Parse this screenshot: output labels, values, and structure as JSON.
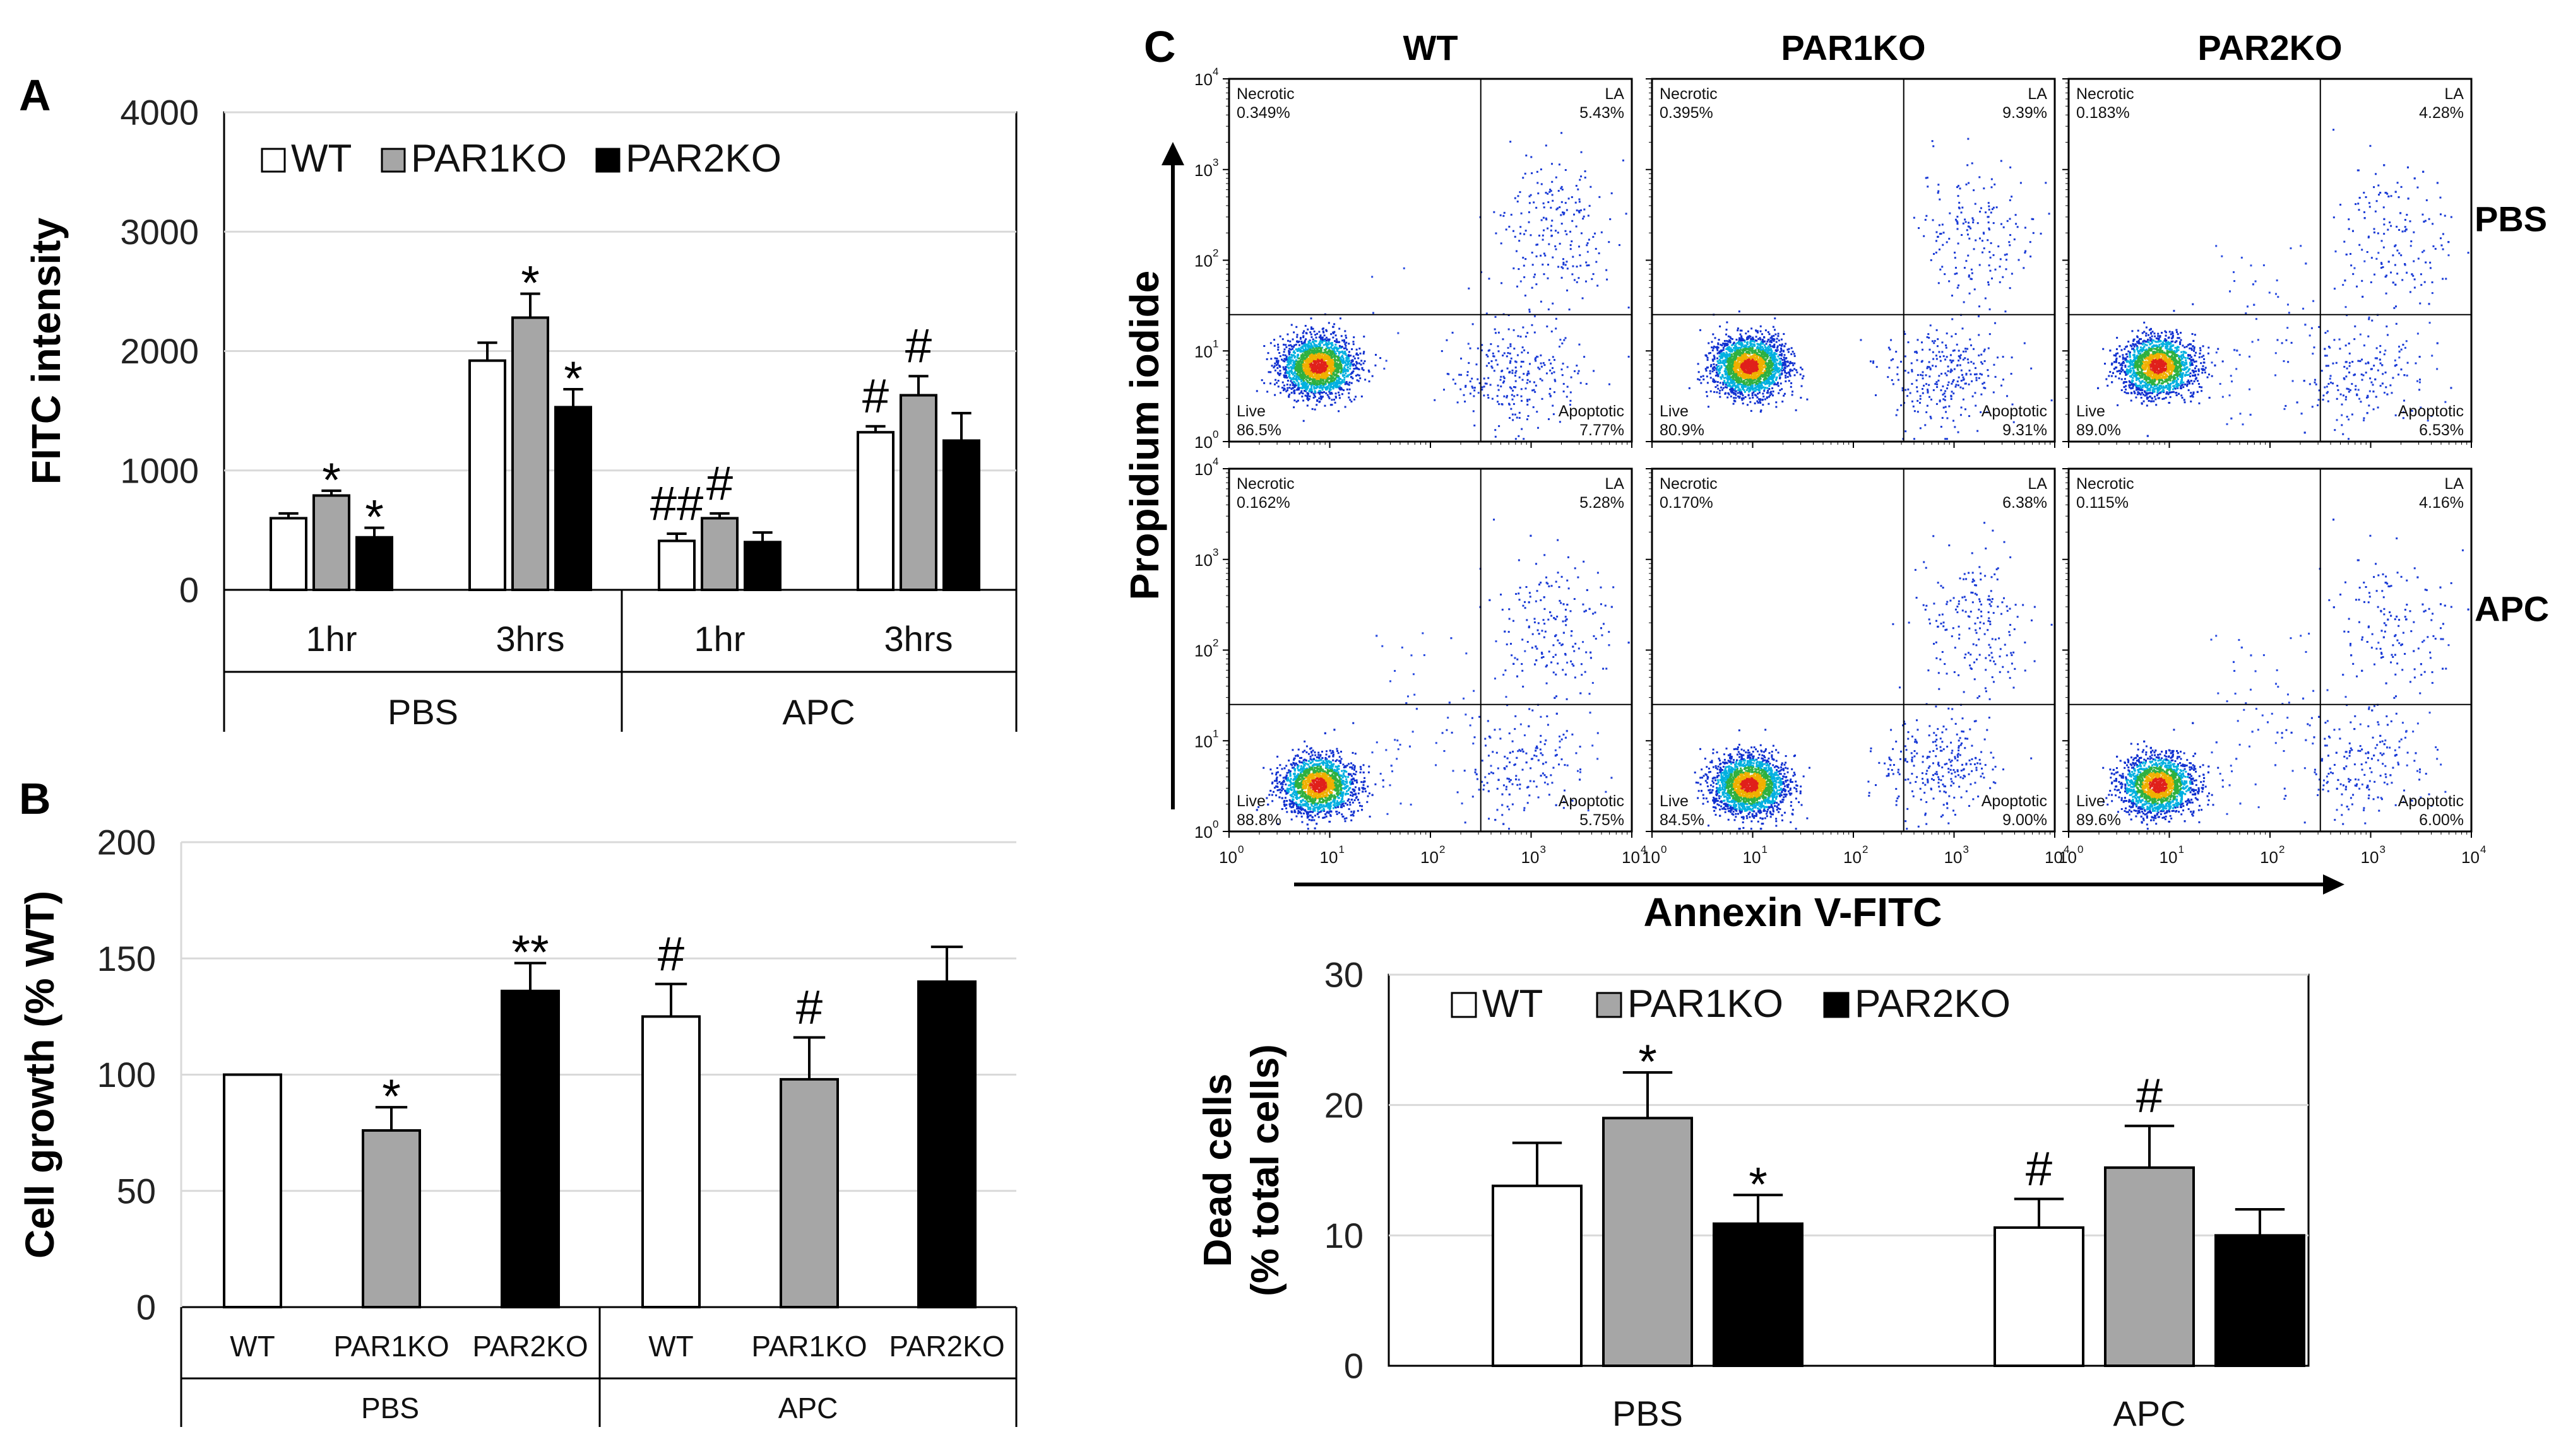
{
  "panels": {
    "a": "A",
    "b": "B",
    "c": "C"
  },
  "chart_data": [
    {
      "id": "A",
      "type": "bar",
      "ylabel": "FITC intensity",
      "ylim": [
        0,
        4000
      ],
      "yticks": [
        0,
        1000,
        2000,
        3000,
        4000
      ],
      "grid": true,
      "legend": {
        "placement": "top-left",
        "entries": [
          "WT",
          "PAR1KO",
          "PAR2KO"
        ]
      },
      "categories": [
        "1hr",
        "3hrs",
        "1hr",
        "3hrs"
      ],
      "groups": [
        "PBS",
        "APC"
      ],
      "series": [
        {
          "name": "WT",
          "color": "#ffffff",
          "values": [
            600,
            1920,
            410,
            1320
          ],
          "errors": [
            40,
            150,
            60,
            50
          ],
          "annotations": [
            "",
            "",
            "##",
            "#"
          ]
        },
        {
          "name": "PAR1KO",
          "color": "#a6a6a6",
          "values": [
            790,
            2280,
            600,
            1630
          ],
          "errors": [
            40,
            200,
            40,
            160
          ],
          "annotations": [
            "*",
            "*",
            "#",
            "#"
          ]
        },
        {
          "name": "PAR2KO",
          "color": "#000000",
          "values": [
            440,
            1530,
            400,
            1250
          ],
          "errors": [
            80,
            150,
            80,
            230
          ],
          "annotations": [
            "*",
            "*",
            "",
            ""
          ]
        }
      ]
    },
    {
      "id": "B",
      "type": "bar",
      "ylabel": "Cell growth (% WT)",
      "ylim": [
        0,
        200
      ],
      "yticks": [
        0,
        50,
        100,
        150,
        200
      ],
      "grid": true,
      "categories": [
        "WT",
        "PAR1KO",
        "PAR2KO",
        "WT",
        "PAR1KO",
        "PAR2KO"
      ],
      "groups": [
        "PBS",
        "APC"
      ],
      "colors": [
        "#ffffff",
        "#a6a6a6",
        "#000000",
        "#ffffff",
        "#a6a6a6",
        "#000000"
      ],
      "values": [
        100,
        76,
        136,
        125,
        98,
        140
      ],
      "errors": [
        0,
        10,
        12,
        14,
        18,
        15
      ],
      "annotations": [
        "",
        "*",
        "**",
        "#",
        "#",
        ""
      ]
    },
    {
      "id": "C-flow",
      "type": "scatter",
      "xlabel": "Annexin V-FITC",
      "ylabel": "Propidium iodide",
      "columns": [
        "WT",
        "PAR1KO",
        "PAR2KO"
      ],
      "rows": [
        "PBS",
        "APC"
      ],
      "axis_ticks": [
        "10",
        "10",
        "10",
        "10",
        "10"
      ],
      "axis_exponents": [
        "0",
        "1",
        "2",
        "3",
        "4"
      ],
      "quadrant_labels": {
        "necrotic": "Necrotic",
        "la": "LA",
        "live": "Live",
        "apoptotic": "Apoptotic"
      },
      "plots": [
        {
          "row": "PBS",
          "col": "WT",
          "necrotic": "0.349%",
          "la": "5.43%",
          "live": "86.5%",
          "apoptotic": "7.77%"
        },
        {
          "row": "PBS",
          "col": "PAR1KO",
          "necrotic": "0.395%",
          "la": "9.39%",
          "live": "80.9%",
          "apoptotic": "9.31%"
        },
        {
          "row": "PBS",
          "col": "PAR2KO",
          "necrotic": "0.183%",
          "la": "4.28%",
          "live": "89.0%",
          "apoptotic": "6.53%"
        },
        {
          "row": "APC",
          "col": "WT",
          "necrotic": "0.162%",
          "la": "5.28%",
          "live": "88.8%",
          "apoptotic": "5.75%"
        },
        {
          "row": "APC",
          "col": "PAR1KO",
          "necrotic": "0.170%",
          "la": "6.38%",
          "live": "84.5%",
          "apoptotic": "9.00%"
        },
        {
          "row": "APC",
          "col": "PAR2KO",
          "necrotic": "0.115%",
          "la": "4.16%",
          "live": "89.6%",
          "apoptotic": "6.00%"
        }
      ]
    },
    {
      "id": "C-bar",
      "type": "bar",
      "ylabel_line1": "Dead cells",
      "ylabel_line2": "(% total cells)",
      "ylim": [
        0,
        30
      ],
      "yticks": [
        0,
        10,
        20,
        30
      ],
      "grid": true,
      "legend": {
        "placement": "top",
        "entries": [
          "WT",
          "PAR1KO",
          "PAR2KO"
        ]
      },
      "categories": [
        "PBS",
        "APC"
      ],
      "series": [
        {
          "name": "WT",
          "color": "#ffffff",
          "values": [
            13.8,
            10.6
          ],
          "errors": [
            3.3,
            2.2
          ],
          "annotations": [
            "",
            "#"
          ]
        },
        {
          "name": "PAR1KO",
          "color": "#a6a6a6",
          "values": [
            19.0,
            15.2
          ],
          "errors": [
            3.5,
            3.2
          ],
          "annotations": [
            "*",
            "#"
          ]
        },
        {
          "name": "PAR2KO",
          "color": "#000000",
          "values": [
            10.9,
            10.0
          ],
          "errors": [
            2.2,
            2.0
          ],
          "annotations": [
            "*",
            ""
          ]
        }
      ]
    }
  ]
}
